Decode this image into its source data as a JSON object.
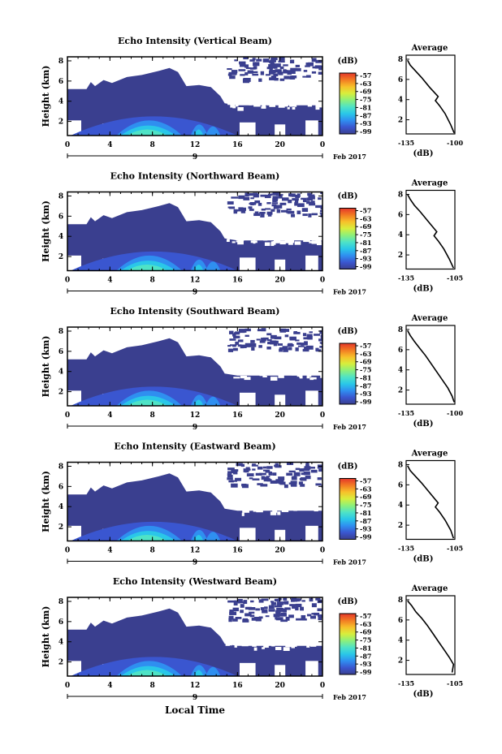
{
  "figure": {
    "footer_label": "Local Time",
    "colorbar_unit": "(dB)",
    "avg_title": "Average",
    "avg_xlabel": "(dB)",
    "date_label": "Feb 2017",
    "date_day": "9"
  },
  "colors": {
    "scale": [
      "#3a3f8f",
      "#3a56d0",
      "#2f8ff0",
      "#2ac7e8",
      "#4fe3c6",
      "#8df07a",
      "#d8ee3c",
      "#f7c02a",
      "#f27a23",
      "#e4362a"
    ]
  },
  "chart_data": [
    {
      "type": "heatmap",
      "title": "Echo Intensity (Vertical Beam)",
      "ylabel": "Height (km)",
      "xlabel": "Local Time",
      "x_ticks": [
        "0",
        "4",
        "8",
        "12",
        "16",
        "20",
        "0"
      ],
      "y_ticks": [
        "2",
        "4",
        "6",
        "8"
      ],
      "xlim": [
        0,
        24
      ],
      "ylim": [
        0.6,
        8.4
      ],
      "colorbar_ticks": [
        "-57",
        "-63",
        "-69",
        "-75",
        "-81",
        "-87",
        "-93",
        "-99"
      ],
      "profile": {
        "x_ticks": [
          "-135",
          "-100"
        ],
        "y_ticks": [
          "2",
          "4",
          "6",
          "8"
        ],
        "xlim": [
          -135,
          -100
        ],
        "points": [
          [
            -100.5,
            0.7
          ],
          [
            -103,
            1.5
          ],
          [
            -107,
            2.6
          ],
          [
            -111,
            3.4
          ],
          [
            -114,
            3.9
          ],
          [
            -112,
            4.3
          ],
          [
            -118,
            5.2
          ],
          [
            -124,
            6.2
          ],
          [
            -128,
            6.8
          ],
          [
            -132,
            7.4
          ],
          [
            -134,
            7.9
          ]
        ]
      }
    },
    {
      "type": "heatmap",
      "title": "Echo Intensity (Northward Beam)",
      "ylabel": "Height (km)",
      "xlabel": "Local Time",
      "x_ticks": [
        "0",
        "4",
        "8",
        "12",
        "16",
        "20",
        "0"
      ],
      "y_ticks": [
        "2",
        "4",
        "6",
        "8"
      ],
      "xlim": [
        0,
        24
      ],
      "ylim": [
        0.6,
        8.4
      ],
      "colorbar_ticks": [
        "-57",
        "-63",
        "-69",
        "-75",
        "-81",
        "-87",
        "-93",
        "-99"
      ],
      "profile": {
        "x_ticks": [
          "-135",
          "-105"
        ],
        "y_ticks": [
          "2",
          "4",
          "6",
          "8"
        ],
        "xlim": [
          -135,
          -100
        ],
        "points": [
          [
            -101,
            0.7
          ],
          [
            -104,
            1.6
          ],
          [
            -108,
            2.6
          ],
          [
            -112,
            3.4
          ],
          [
            -115,
            3.9
          ],
          [
            -113,
            4.3
          ],
          [
            -119,
            5.3
          ],
          [
            -125,
            6.3
          ],
          [
            -129,
            6.9
          ],
          [
            -132,
            7.5
          ],
          [
            -134,
            8.0
          ]
        ]
      }
    },
    {
      "type": "heatmap",
      "title": "Echo Intensity (Southward Beam)",
      "ylabel": "Height (km)",
      "xlabel": "Local Time",
      "x_ticks": [
        "0",
        "4",
        "8",
        "12",
        "16",
        "20",
        "0"
      ],
      "y_ticks": [
        "2",
        "4",
        "6",
        "8"
      ],
      "xlim": [
        0,
        24
      ],
      "ylim": [
        0.6,
        8.4
      ],
      "colorbar_ticks": [
        "-57",
        "-63",
        "-69",
        "-75",
        "-81",
        "-87",
        "-93",
        "-99"
      ],
      "profile": {
        "x_ticks": [
          "-135",
          "-100"
        ],
        "y_ticks": [
          "2",
          "4",
          "6",
          "8"
        ],
        "xlim": [
          -135,
          -100
        ],
        "points": [
          [
            -100.5,
            0.8
          ],
          [
            -102,
            1.4
          ],
          [
            -105,
            2.2
          ],
          [
            -109,
            3.0
          ],
          [
            -113,
            3.8
          ],
          [
            -117,
            4.6
          ],
          [
            -121,
            5.4
          ],
          [
            -125,
            6.1
          ],
          [
            -129,
            6.8
          ],
          [
            -132,
            7.4
          ],
          [
            -134,
            7.9
          ]
        ]
      }
    },
    {
      "type": "heatmap",
      "title": "Echo Intensity (Eastward Beam)",
      "ylabel": "Height (km)",
      "xlabel": "Local Time",
      "x_ticks": [
        "0",
        "4",
        "8",
        "12",
        "16",
        "20",
        "0"
      ],
      "y_ticks": [
        "2",
        "4",
        "6",
        "8"
      ],
      "xlim": [
        0,
        24
      ],
      "ylim": [
        0.6,
        8.4
      ],
      "colorbar_ticks": [
        "-57",
        "-63",
        "-69",
        "-75",
        "-81",
        "-87",
        "-93",
        "-99"
      ],
      "profile": {
        "x_ticks": [
          "-135",
          "-105"
        ],
        "y_ticks": [
          "2",
          "4",
          "6",
          "8"
        ],
        "xlim": [
          -135,
          -100
        ],
        "points": [
          [
            -101,
            0.7
          ],
          [
            -103,
            1.5
          ],
          [
            -107,
            2.5
          ],
          [
            -111,
            3.3
          ],
          [
            -114,
            3.8
          ],
          [
            -112,
            4.2
          ],
          [
            -118,
            5.2
          ],
          [
            -124,
            6.2
          ],
          [
            -128,
            6.8
          ],
          [
            -132,
            7.4
          ],
          [
            -134,
            7.9
          ]
        ]
      }
    },
    {
      "type": "heatmap",
      "title": "Echo Intensity (Westward Beam)",
      "ylabel": "Height (km)",
      "xlabel": "Local Time",
      "x_ticks": [
        "0",
        "4",
        "8",
        "12",
        "16",
        "20",
        "0"
      ],
      "y_ticks": [
        "2",
        "4",
        "6",
        "8"
      ],
      "xlim": [
        0,
        24
      ],
      "ylim": [
        0.6,
        8.4
      ],
      "colorbar_ticks": [
        "-57",
        "-63",
        "-69",
        "-75",
        "-81",
        "-87",
        "-93",
        "-99"
      ],
      "profile": {
        "x_ticks": [
          "-135",
          "-105"
        ],
        "y_ticks": [
          "2",
          "4",
          "6",
          "8"
        ],
        "xlim": [
          -135,
          -100
        ],
        "points": [
          [
            -102,
            0.8
          ],
          [
            -101,
            1.6
          ],
          [
            -104,
            2.3
          ],
          [
            -108,
            3.1
          ],
          [
            -112,
            3.9
          ],
          [
            -116,
            4.7
          ],
          [
            -120,
            5.5
          ],
          [
            -124,
            6.2
          ],
          [
            -128,
            6.8
          ],
          [
            -131,
            7.4
          ],
          [
            -134,
            7.9
          ]
        ]
      }
    }
  ]
}
